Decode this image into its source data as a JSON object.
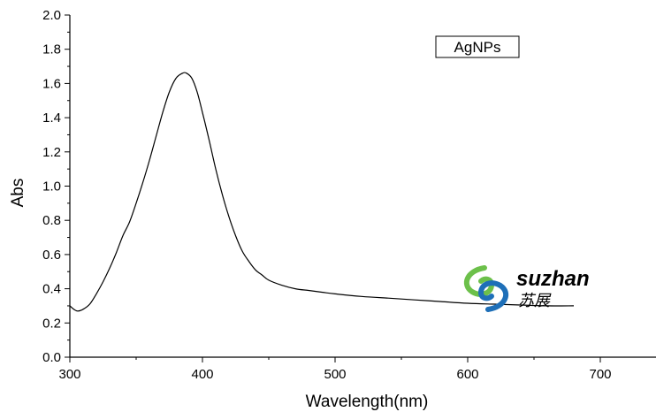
{
  "chart_data": {
    "type": "line",
    "xlabel": "Wavelength(nm)",
    "ylabel": "Abs",
    "xlim": [
      300,
      742
    ],
    "ylim": [
      0.0,
      2.0
    ],
    "x_ticks": [
      "300",
      "400",
      "500",
      "600",
      "700"
    ],
    "y_ticks": [
      "0.0",
      "0.2",
      "0.4",
      "0.6",
      "0.8",
      "1.0",
      "1.2",
      "1.4",
      "1.6",
      "1.8",
      "2.0"
    ],
    "x_tick_values": [
      300,
      400,
      500,
      600,
      700
    ],
    "y_tick_values": [
      0.0,
      0.2,
      0.4,
      0.6,
      0.8,
      1.0,
      1.2,
      1.4,
      1.6,
      1.8,
      2.0
    ],
    "legend": "top-right",
    "grid": false,
    "series": [
      {
        "name": "AgNPs",
        "color": "#000000",
        "x": [
          300,
          303,
          306,
          310,
          315,
          320,
          325,
          330,
          335,
          340,
          345,
          350,
          355,
          360,
          365,
          370,
          375,
          380,
          385,
          388,
          392,
          396,
          400,
          405,
          410,
          415,
          420,
          425,
          430,
          435,
          440,
          445,
          450,
          460,
          470,
          480,
          490,
          500,
          520,
          540,
          560,
          580,
          600,
          620,
          640,
          660,
          680
        ],
        "y": [
          0.3,
          0.28,
          0.27,
          0.28,
          0.31,
          0.37,
          0.44,
          0.52,
          0.61,
          0.71,
          0.79,
          0.9,
          1.02,
          1.15,
          1.29,
          1.43,
          1.55,
          1.63,
          1.66,
          1.66,
          1.63,
          1.55,
          1.43,
          1.27,
          1.1,
          0.95,
          0.82,
          0.71,
          0.62,
          0.56,
          0.51,
          0.48,
          0.45,
          0.42,
          0.4,
          0.39,
          0.38,
          0.37,
          0.355,
          0.345,
          0.335,
          0.325,
          0.315,
          0.31,
          0.305,
          0.3,
          0.3
        ]
      }
    ]
  },
  "watermark": {
    "brand": "suzhan",
    "brand_cn": "苏展",
    "colors": {
      "green": "#6cc04a",
      "blue": "#1e6fb8",
      "text": "#1a3a8a"
    }
  }
}
